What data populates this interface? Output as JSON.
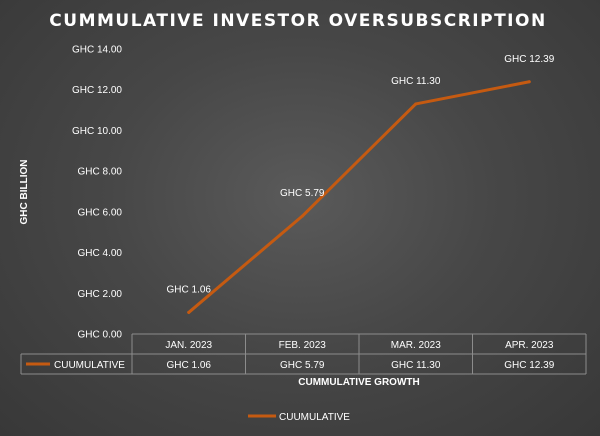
{
  "chart_data": {
    "type": "line",
    "title": "CUMMULATIVE INVESTOR OVERSUBSCRIPTION",
    "ylabel": "GHC BILLION",
    "xlabel": "CUMMULATIVE GROWTH",
    "categories": [
      "JAN. 2023",
      "FEB. 2023",
      "MAR. 2023",
      "APR. 2023"
    ],
    "ylim": [
      0,
      14
    ],
    "y_ticks": [
      0,
      2,
      4,
      6,
      8,
      10,
      12,
      14
    ],
    "y_tick_labels": [
      "GHC 0.00",
      "GHC 2.00",
      "GHC 4.00",
      "GHC 6.00",
      "GHC 8.00",
      "GHC 10.00",
      "GHC 12.00",
      "GHC 14.00"
    ],
    "series": [
      {
        "name": "CUUMULATIVE",
        "values": [
          1.06,
          5.79,
          11.3,
          12.39
        ],
        "data_labels": [
          "GHC 1.06",
          "GHC 5.79",
          "GHC 11.30",
          "GHC 12.39"
        ]
      }
    ],
    "legend": {
      "position": "bottom",
      "entries": [
        "CUUMULATIVE"
      ]
    },
    "data_table": true,
    "grid": false,
    "colors": {
      "line": "#c55a11",
      "text": "#ffffff",
      "table_border": "#8c8c8c"
    }
  }
}
